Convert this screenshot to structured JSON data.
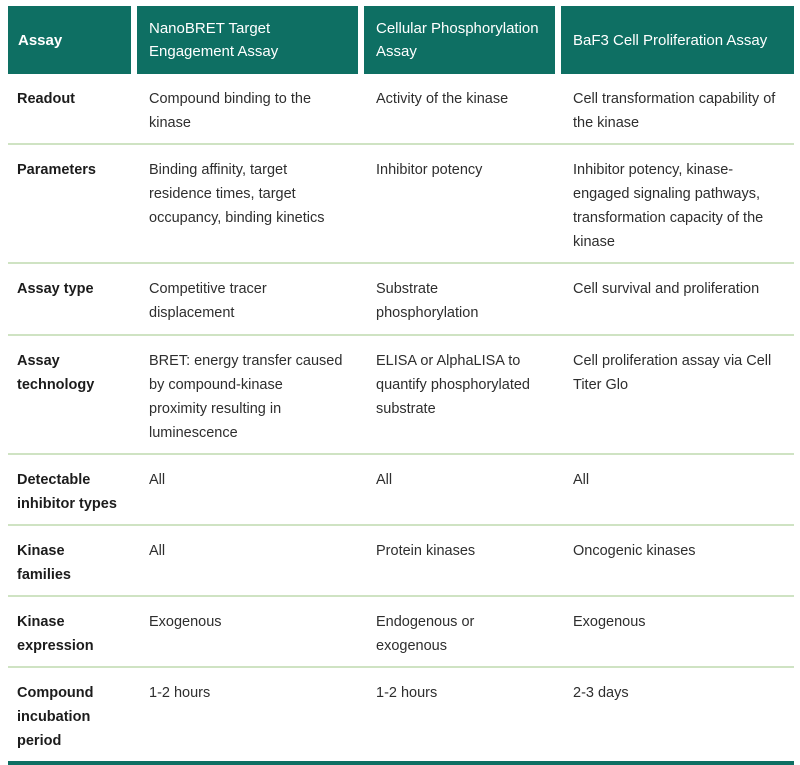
{
  "colors": {
    "header_teal": "#0e6f63",
    "divider_green": "#cfe3c3",
    "body_text": "#2e2e2e"
  },
  "table": {
    "header": {
      "col0": "Assay",
      "col1": "NanoBRET Target Engagement Assay",
      "col2": "Cellular Phosphorylation Assay",
      "col3": "BaF3 Cell Proliferation Assay"
    },
    "rows": [
      {
        "label": "Readout",
        "cells": [
          "Compound binding to the kinase",
          "Activity of the kinase",
          "Cell transformation capability of the kinase"
        ]
      },
      {
        "label": "Parameters",
        "cells": [
          "Binding affinity, target residence times, target occupancy, binding kinetics",
          "Inhibitor potency",
          "Inhibitor potency, kinase-engaged signaling pathways, transformation capacity of the kinase"
        ]
      },
      {
        "label": "Assay type",
        "cells": [
          "Competitive tracer displacement",
          "Substrate phosphorylation",
          "Cell survival and proliferation"
        ]
      },
      {
        "label": "Assay technology",
        "cells": [
          "BRET: energy transfer caused by compound-kinase proximity resulting in luminescence",
          "ELISA or AlphaLISA to quantify phosphorylated substrate",
          "Cell proliferation assay via Cell Titer Glo"
        ]
      },
      {
        "label": "Detectable inhibitor types",
        "cells": [
          "All",
          "All",
          "All"
        ]
      },
      {
        "label": "Kinase families",
        "cells": [
          "All",
          "Protein kinases",
          "Oncogenic kinases"
        ]
      },
      {
        "label": "Kinase expression",
        "cells": [
          "Exogenous",
          "Endogenous or exogenous",
          "Exogenous"
        ]
      },
      {
        "label": "Compound incubation period",
        "cells": [
          "1-2 hours",
          "1-2 hours",
          "2-3 days"
        ]
      }
    ]
  }
}
